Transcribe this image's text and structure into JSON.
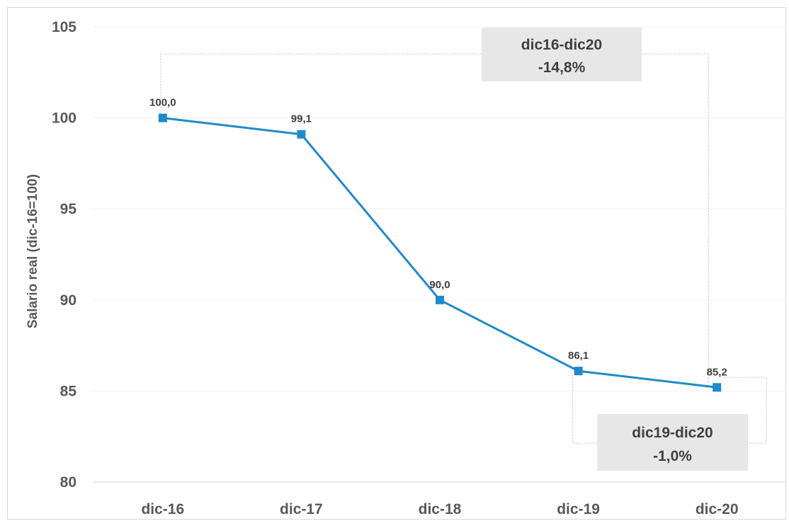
{
  "chart_data": {
    "type": "line",
    "categories": [
      "dic-16",
      "dic-17",
      "dic-18",
      "dic-19",
      "dic-20"
    ],
    "series": [
      {
        "values": [
          100.0,
          99.1,
          90.0,
          86.1,
          85.2
        ]
      }
    ],
    "data_labels": [
      "100,0",
      "99,1",
      "90,0",
      "86,1",
      "85,2"
    ],
    "ylabel": "Salario real (dic-16=100)",
    "ylim": [
      80,
      105
    ],
    "yticks": [
      80,
      85,
      90,
      95,
      100,
      105
    ],
    "ytick_labels": [
      "80",
      "85",
      "90",
      "95",
      "100",
      "105"
    ],
    "grid": true,
    "line_color": "#1f8ac9",
    "annotations": [
      {
        "label": "dic16-dic20",
        "value": "-14,8%",
        "from": "dic-16",
        "to": "dic-20"
      },
      {
        "label": "dic19-dic20",
        "value": "-1,0%",
        "from": "dic-19",
        "to": "dic-20"
      }
    ]
  }
}
